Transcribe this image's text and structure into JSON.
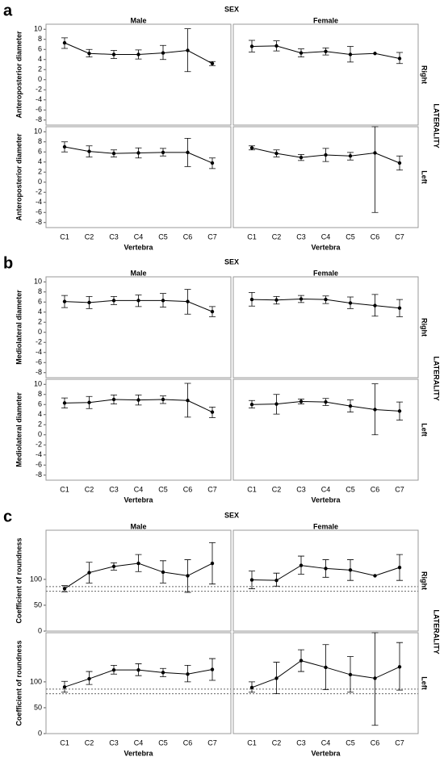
{
  "chart_data": [
    {
      "type": "line",
      "label": "a",
      "facet_title": "SEX",
      "columns": [
        "Male",
        "Female"
      ],
      "row_facet_title": "LATERALITY",
      "rows": [
        "Right",
        "Left"
      ],
      "ylabel": "Anteroposterior diameter",
      "xlabel": "Vertebra",
      "color": "#000000",
      "categories": [
        "C1",
        "C2",
        "C3",
        "C4",
        "C5",
        "C6",
        "C7"
      ],
      "ylim": [
        -9,
        11
      ],
      "yticks": [
        -8,
        -6,
        -4,
        -2,
        0,
        2,
        4,
        6,
        8,
        10
      ],
      "panels": [
        [
          {
            "values": [
              7.3,
              5.2,
              5,
              5,
              5.3,
              5.8,
              3.2
            ],
            "lower": [
              6.2,
              4.5,
              4.2,
              4.1,
              4,
              1.6,
              2.8
            ],
            "upper": [
              8.3,
              6,
              5.8,
              5.9,
              6.8,
              10.1,
              3.6
            ]
          },
          {
            "values": [
              6.6,
              6.7,
              5.3,
              5.6,
              5,
              5.2,
              4.2
            ],
            "lower": [
              5.5,
              5.7,
              4.5,
              4.9,
              3.5,
              null,
              3.2
            ],
            "upper": [
              7.8,
              7.7,
              6.1,
              6.3,
              6.6,
              null,
              5.4
            ]
          }
        ],
        [
          {
            "values": [
              7,
              6.1,
              5.7,
              5.8,
              5.9,
              5.9,
              3.8
            ],
            "lower": [
              6,
              5,
              5,
              4.8,
              5.2,
              3.1,
              2.7
            ],
            "upper": [
              8,
              7.2,
              6.4,
              6.8,
              6.7,
              8.7,
              4.8
            ]
          },
          {
            "values": [
              6.8,
              5.7,
              4.9,
              5.4,
              5.2,
              5.8,
              3.8
            ],
            "lower": [
              6.4,
              5,
              4.3,
              4.1,
              4.4,
              -6,
              2.4
            ],
            "upper": [
              7.2,
              6.4,
              5.5,
              6.7,
              5.9,
              11,
              5.2
            ]
          }
        ]
      ]
    },
    {
      "type": "line",
      "label": "b",
      "facet_title": "SEX",
      "columns": [
        "Male",
        "Female"
      ],
      "row_facet_title": "LATERALITY",
      "rows": [
        "Right",
        "Left"
      ],
      "ylabel": "Mediolateral diameter",
      "xlabel": "Vertebra",
      "color": "#000000",
      "categories": [
        "C1",
        "C2",
        "C3",
        "C4",
        "C5",
        "C6",
        "C7"
      ],
      "ylim": [
        -9,
        11
      ],
      "yticks": [
        -8,
        -6,
        -4,
        -2,
        0,
        2,
        4,
        6,
        8,
        10
      ],
      "panels": [
        [
          {
            "values": [
              6.1,
              5.9,
              6.3,
              6.3,
              6.3,
              6.1,
              4.1
            ],
            "lower": [
              4.9,
              4.7,
              5.5,
              5.1,
              5,
              3.6,
              3.1
            ],
            "upper": [
              7.3,
              7.1,
              7.1,
              7.4,
              7.7,
              8.5,
              5.1
            ]
          },
          {
            "values": [
              6.5,
              6.4,
              6.6,
              6.5,
              5.8,
              5.3,
              4.8
            ],
            "lower": [
              5.2,
              5.6,
              5.9,
              5.7,
              4.7,
              3.2,
              3.1
            ],
            "upper": [
              7.9,
              7.1,
              7.3,
              7.2,
              7,
              7.5,
              6.5
            ]
          }
        ],
        [
          {
            "values": [
              6.3,
              6.4,
              7,
              6.9,
              7,
              6.8,
              4.5
            ],
            "lower": [
              5.3,
              5.2,
              6.1,
              5.9,
              6.2,
              3.5,
              3.4
            ],
            "upper": [
              7.3,
              7.6,
              7.9,
              7.9,
              7.7,
              10.2,
              5.5
            ]
          },
          {
            "values": [
              6,
              6.1,
              6.6,
              6.5,
              5.7,
              5,
              4.7
            ],
            "lower": [
              5.3,
              4.1,
              6.1,
              5.8,
              4.5,
              0,
              2.9
            ],
            "upper": [
              6.8,
              8,
              7.1,
              7.2,
              6.9,
              10.1,
              6.5
            ]
          }
        ]
      ]
    },
    {
      "type": "line",
      "label": "c",
      "facet_title": "SEX",
      "columns": [
        "Male",
        "Female"
      ],
      "row_facet_title": "LATERALITY",
      "rows": [
        "Right",
        "Left"
      ],
      "ylabel": "Coefficient of roundness",
      "xlabel": "Vertebra",
      "color": "#000000",
      "categories": [
        "C1",
        "C2",
        "C3",
        "C4",
        "C5",
        "C6",
        "C7"
      ],
      "ylim": [
        0,
        195
      ],
      "yticks": [
        0,
        50,
        100
      ],
      "reference_lines": [
        86,
        77
      ],
      "panels": [
        [
          {
            "values": [
              82,
              113,
              125,
              131,
              114,
              107,
              131
            ],
            "lower": [
              76,
              93,
              118,
              115,
              93,
              75,
              91
            ],
            "upper": [
              88,
              133,
              132,
              148,
              136,
              138,
              171
            ]
          },
          {
            "values": [
              99,
              98,
              127,
              121,
              118,
              107,
              123
            ],
            "lower": [
              82,
              87,
              110,
              104,
              98,
              null,
              98
            ],
            "upper": [
              116,
              112,
              145,
              138,
              138,
              null,
              148
            ]
          }
        ],
        [
          {
            "values": [
              90,
              106,
              123,
              123,
              118,
              115,
              124
            ],
            "lower": [
              80,
              95,
              115,
              112,
              110,
              100,
              103
            ],
            "upper": [
              101,
              120,
              132,
              135,
              126,
              132,
              145
            ]
          },
          {
            "values": [
              89,
              107,
              141,
              128,
              114,
              107,
              129
            ],
            "lower": [
              80,
              77,
              120,
              85,
              80,
              16,
              84
            ],
            "upper": [
              100,
              138,
              162,
              172,
              149,
              195,
              176
            ]
          }
        ]
      ]
    }
  ]
}
